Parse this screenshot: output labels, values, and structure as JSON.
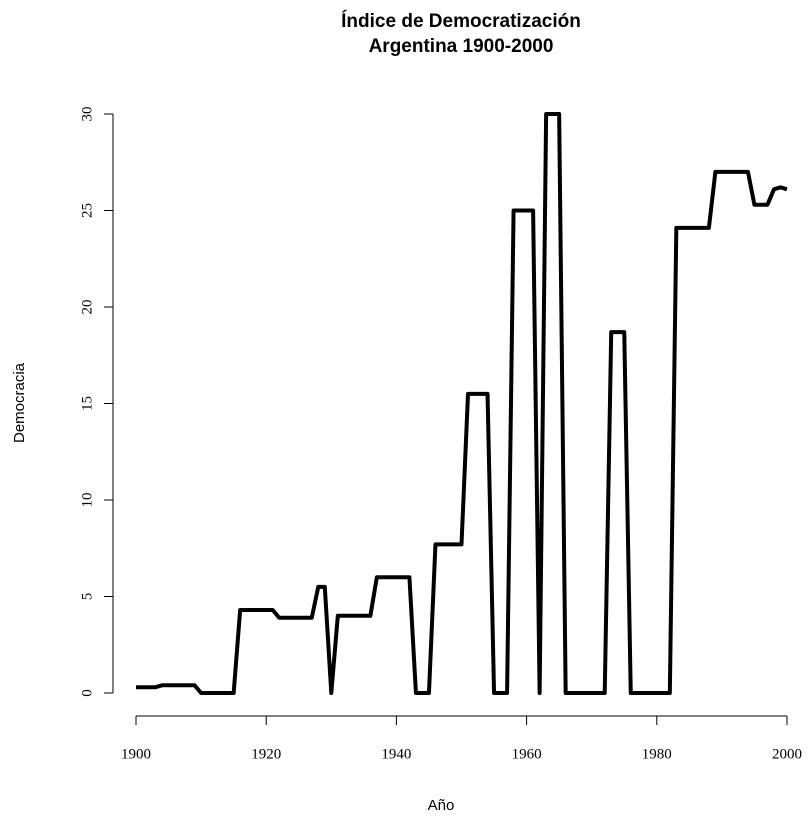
{
  "chart_data": {
    "type": "line",
    "title": "Índice de Democratización",
    "subtitle": "Argentina 1900-2000",
    "x_label": "Año",
    "y_label": "Democracia",
    "color": "#000000",
    "x": [
      1900,
      1901,
      1902,
      1903,
      1904,
      1905,
      1906,
      1907,
      1908,
      1909,
      1910,
      1911,
      1912,
      1913,
      1914,
      1915,
      1916,
      1917,
      1918,
      1919,
      1920,
      1921,
      1922,
      1923,
      1924,
      1925,
      1926,
      1927,
      1928,
      1929,
      1930,
      1931,
      1932,
      1933,
      1934,
      1935,
      1936,
      1937,
      1938,
      1939,
      1940,
      1941,
      1942,
      1943,
      1944,
      1945,
      1946,
      1947,
      1948,
      1949,
      1950,
      1951,
      1952,
      1953,
      1954,
      1955,
      1956,
      1957,
      1958,
      1959,
      1960,
      1961,
      1962,
      1963,
      1964,
      1965,
      1966,
      1967,
      1968,
      1969,
      1970,
      1971,
      1972,
      1973,
      1974,
      1975,
      1976,
      1977,
      1978,
      1979,
      1980,
      1981,
      1982,
      1983,
      1984,
      1985,
      1986,
      1987,
      1988,
      1989,
      1990,
      1991,
      1992,
      1993,
      1994,
      1995,
      1996,
      1997,
      1998,
      1999,
      2000
    ],
    "values": [
      0.3,
      0.3,
      0.3,
      0.3,
      0.4,
      0.4,
      0.4,
      0.4,
      0.4,
      0.4,
      0,
      0,
      0,
      0,
      0,
      0,
      4.3,
      4.3,
      4.3,
      4.3,
      4.3,
      4.3,
      3.9,
      3.9,
      3.9,
      3.9,
      3.9,
      3.9,
      5.5,
      5.5,
      0,
      4,
      4,
      4,
      4,
      4,
      4,
      6,
      6,
      6,
      6,
      6,
      6,
      0,
      0,
      0,
      7.7,
      7.7,
      7.7,
      7.7,
      7.7,
      15.5,
      15.5,
      15.5,
      15.5,
      0,
      0,
      0,
      25,
      25,
      25,
      25,
      0,
      30,
      30,
      30,
      0,
      0,
      0,
      0,
      0,
      0,
      0,
      18.7,
      18.7,
      18.7,
      0,
      0,
      0,
      0,
      0,
      0,
      0,
      24.1,
      24.1,
      24.1,
      24.1,
      24.1,
      24.1,
      27,
      27,
      27,
      27,
      27,
      27,
      25.3,
      25.3,
      25.3,
      26.1,
      26.2,
      26.1
    ],
    "xlim": [
      1900,
      2000
    ],
    "xticks": [
      1900,
      1920,
      1940,
      1960,
      1980,
      2000
    ],
    "ylim": [
      0,
      30
    ],
    "yticks": [
      0,
      5,
      10,
      15,
      20,
      25,
      30
    ]
  }
}
